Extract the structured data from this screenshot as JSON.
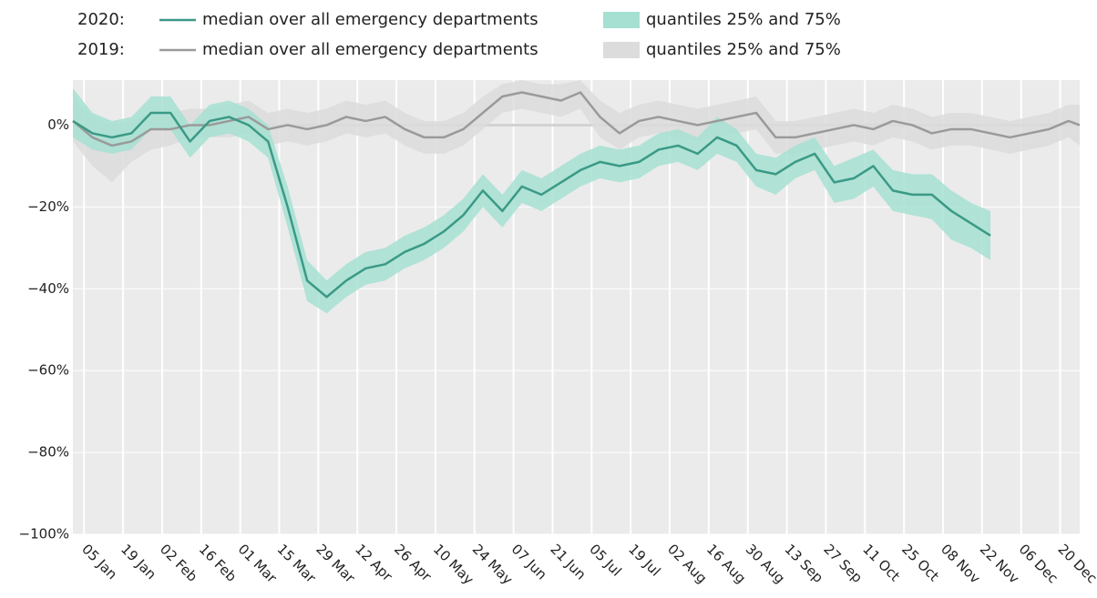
{
  "chart_data": {
    "type": "line",
    "xlim": [
      "01 Jan",
      "27 Dec"
    ],
    "ylim": [
      -100,
      11
    ],
    "xticks": [
      "05 Jan",
      "19 Jan",
      "02 Feb",
      "16 Feb",
      "01 Mar",
      "15 Mar",
      "29 Mar",
      "12 Apr",
      "26 Apr",
      "10 May",
      "24 May",
      "07 Jun",
      "21 Jun",
      "05 Jul",
      "19 Jul",
      "02 Aug",
      "16 Aug",
      "30 Aug",
      "13 Sep",
      "27 Sep",
      "11 Oct",
      "25 Oct",
      "08 Nov",
      "22 Nov",
      "06 Dec",
      "20 Dec"
    ],
    "yticks": [
      {
        "value": -100,
        "label": "−100%"
      },
      {
        "value": -80,
        "label": "−80%"
      },
      {
        "value": -60,
        "label": "−60%"
      },
      {
        "value": -40,
        "label": "−40%"
      },
      {
        "value": -20,
        "label": "−20%"
      },
      {
        "value": 0,
        "label": "0%"
      }
    ],
    "grid": true,
    "groups": [
      {
        "label": "2019:",
        "x": [
          "01 Jan",
          "08 Jan",
          "15 Jan",
          "22 Jan",
          "29 Jan",
          "05 Feb",
          "12 Feb",
          "19 Feb",
          "26 Feb",
          "04 Mar",
          "11 Mar",
          "18 Mar",
          "25 Mar",
          "01 Apr",
          "08 Apr",
          "15 Apr",
          "22 Apr",
          "29 Apr",
          "06 May",
          "13 May",
          "20 May",
          "27 May",
          "03 Jun",
          "10 Jun",
          "17 Jun",
          "24 Jun",
          "01 Jul",
          "08 Jul",
          "15 Jul",
          "22 Jul",
          "29 Jul",
          "05 Aug",
          "12 Aug",
          "19 Aug",
          "26 Aug",
          "02 Sep",
          "09 Sep",
          "16 Sep",
          "23 Sep",
          "30 Sep",
          "07 Oct",
          "14 Oct",
          "21 Oct",
          "28 Oct",
          "04 Nov",
          "11 Nov",
          "18 Nov",
          "25 Nov",
          "02 Dec",
          "09 Dec",
          "16 Dec",
          "23 Dec",
          "27 Dec"
        ],
        "series": [
          {
            "name": "median over all emergency departments",
            "type": "line",
            "color": "#9a9a9a",
            "values": [
              1,
              -3,
              -5,
              -4,
              -1,
              -1,
              0,
              0,
              1,
              2,
              -1,
              0,
              -1,
              0,
              2,
              1,
              2,
              -1,
              -3,
              -3,
              -1,
              3,
              7,
              8,
              7,
              6,
              8,
              2,
              -2,
              1,
              2,
              1,
              0,
              1,
              2,
              3,
              -3,
              -3,
              -2,
              -1,
              0,
              -1,
              1,
              0,
              -2,
              -1,
              -1,
              -2,
              -3,
              -2,
              -1,
              1,
              0
            ]
          },
          {
            "name": "quantiles 25% and 75%",
            "type": "band",
            "color": "#dcdcdc",
            "lower": [
              -4,
              -10,
              -14,
              -9,
              -6,
              -5,
              -3,
              -3,
              -3,
              -2,
              -5,
              -4,
              -5,
              -4,
              -2,
              -3,
              -2,
              -5,
              -7,
              -7,
              -5,
              -1,
              3,
              4,
              3,
              2,
              4,
              -3,
              -6,
              -3,
              -2,
              -3,
              -4,
              -3,
              -2,
              -1,
              -7,
              -7,
              -6,
              -5,
              -4,
              -5,
              -3,
              -4,
              -6,
              -5,
              -5,
              -6,
              -7,
              -6,
              -5,
              -3,
              -5
            ],
            "upper": [
              7,
              2,
              0,
              1,
              3,
              3,
              4,
              4,
              5,
              6,
              3,
              4,
              3,
              4,
              6,
              5,
              6,
              3,
              1,
              1,
              3,
              7,
              10,
              11,
              10,
              10,
              11,
              6,
              3,
              5,
              6,
              5,
              4,
              5,
              6,
              7,
              1,
              1,
              2,
              3,
              4,
              3,
              5,
              4,
              2,
              3,
              3,
              2,
              1,
              2,
              3,
              5,
              5
            ]
          }
        ]
      },
      {
        "label": "2020:",
        "x": [
          "01 Jan",
          "08 Jan",
          "15 Jan",
          "22 Jan",
          "29 Jan",
          "05 Feb",
          "12 Feb",
          "19 Feb",
          "26 Feb",
          "04 Mar",
          "11 Mar",
          "18 Mar",
          "25 Mar",
          "01 Apr",
          "08 Apr",
          "15 Apr",
          "22 Apr",
          "29 Apr",
          "06 May",
          "13 May",
          "20 May",
          "27 May",
          "03 Jun",
          "10 Jun",
          "17 Jun",
          "24 Jun",
          "01 Jul",
          "08 Jul",
          "15 Jul",
          "22 Jul",
          "29 Jul",
          "05 Aug",
          "12 Aug",
          "19 Aug",
          "26 Aug",
          "02 Sep",
          "09 Sep",
          "16 Sep",
          "23 Sep",
          "30 Sep",
          "07 Oct",
          "14 Oct",
          "21 Oct",
          "28 Oct",
          "04 Nov",
          "11 Nov",
          "18 Nov",
          "25 Nov"
        ],
        "series": [
          {
            "name": "median over all emergency departments",
            "type": "line",
            "color": "#3a9a86",
            "values": [
              1,
              -2,
              -3,
              -2,
              3,
              3,
              -4,
              1,
              2,
              0,
              -4,
              -20,
              -38,
              -42,
              -38,
              -35,
              -34,
              -31,
              -29,
              -26,
              -22,
              -16,
              -21,
              -15,
              -17,
              -14,
              -11,
              -9,
              -10,
              -9,
              -6,
              -5,
              -7,
              -3,
              -5,
              -11,
              -12,
              -9,
              -7,
              -14,
              -13,
              -10,
              -16,
              -17,
              -17,
              -21,
              -24,
              -27
            ]
          },
          {
            "name": "quantiles 25% and 75%",
            "type": "band",
            "color": "#a6e0d2",
            "lower": [
              -3,
              -6,
              -7,
              -6,
              -1,
              -1,
              -8,
              -3,
              -2,
              -4,
              -8,
              -25,
              -43,
              -46,
              -42,
              -39,
              -38,
              -35,
              -33,
              -30,
              -26,
              -20,
              -25,
              -19,
              -21,
              -18,
              -15,
              -13,
              -14,
              -13,
              -10,
              -9,
              -11,
              -7,
              -9,
              -15,
              -17,
              -13,
              -11,
              -19,
              -18,
              -15,
              -21,
              -22,
              -23,
              -28,
              -30,
              -33
            ],
            "upper": [
              9,
              3,
              1,
              2,
              7,
              7,
              0,
              5,
              6,
              4,
              0,
              -15,
              -33,
              -38,
              -34,
              -31,
              -30,
              -27,
              -25,
              -22,
              -18,
              -12,
              -17,
              -11,
              -13,
              -10,
              -7,
              -5,
              -6,
              -5,
              -2,
              -1,
              -3,
              2,
              -1,
              -7,
              -8,
              -5,
              -3,
              -10,
              -8,
              -6,
              -11,
              -12,
              -12,
              -16,
              -19,
              -21
            ]
          }
        ]
      }
    ]
  }
}
